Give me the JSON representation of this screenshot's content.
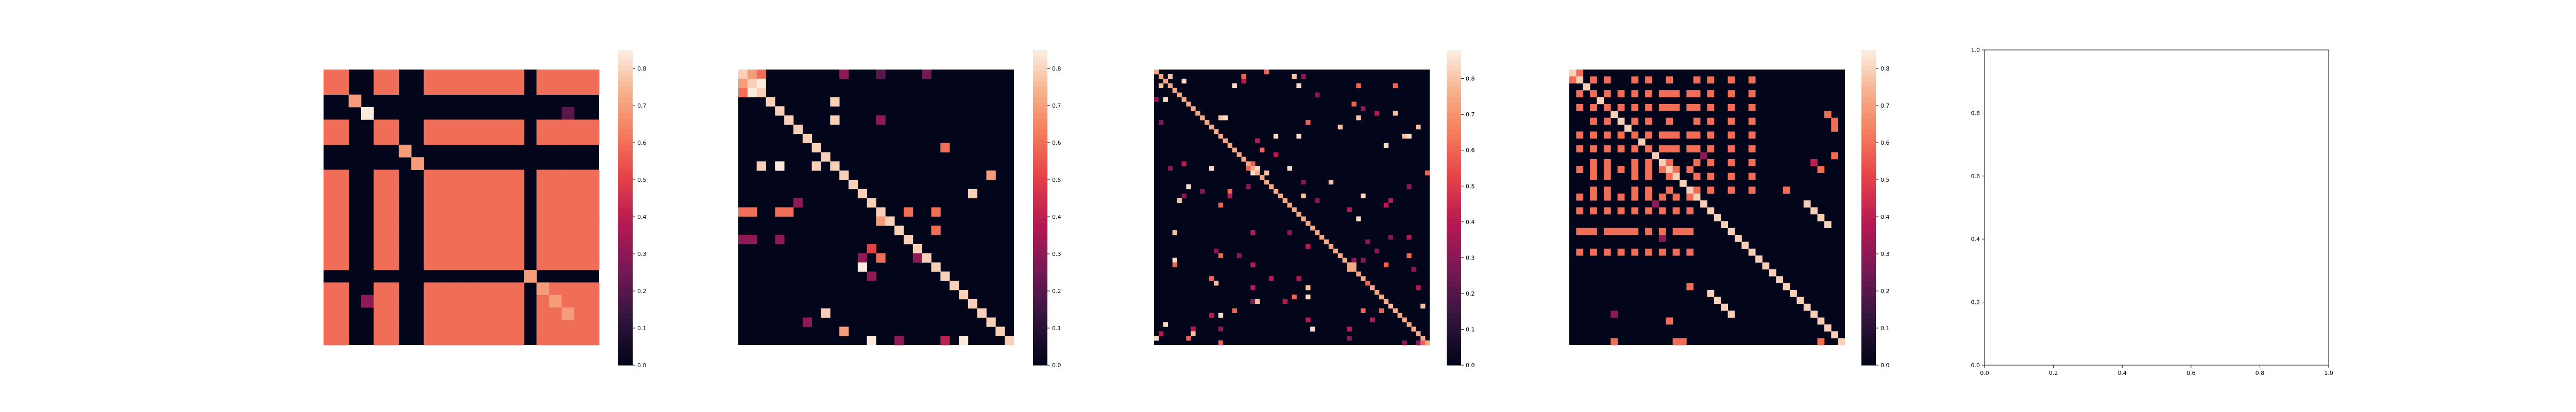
{
  "colors": {
    "background": "#ffffff",
    "heatmap_background": "#03051a",
    "accent": "#e8424a",
    "diag": "#f6b48f",
    "bright": "#fbe9d9",
    "mid_magenta": "#a11a5b",
    "dark_purple": "#4a1a4e"
  },
  "colormap": "rocket",
  "chart_data": [
    {
      "type": "heatmap",
      "title": "",
      "grid_size": 22,
      "colorbar": {
        "min": 0.0,
        "max": 0.85,
        "ticks": [
          "0.0",
          "0.1",
          "0.2",
          "0.3",
          "0.4",
          "0.5",
          "0.6",
          "0.7",
          "0.8"
        ]
      },
      "blocks": {
        "groups": [
          0,
          1,
          4,
          5,
          8,
          9,
          10,
          11,
          12,
          13,
          14,
          15,
          17,
          18,
          19,
          20,
          21
        ],
        "value": 0.6
      },
      "cells": [
        {
          "r": 2,
          "c": 2,
          "v": 0.7
        },
        {
          "r": 3,
          "c": 3,
          "v": 0.85
        },
        {
          "r": 6,
          "c": 6,
          "v": 0.7
        },
        {
          "r": 7,
          "c": 7,
          "v": 0.7
        },
        {
          "r": 16,
          "c": 16,
          "v": 0.7
        },
        {
          "r": 17,
          "c": 17,
          "v": 0.7
        },
        {
          "r": 18,
          "c": 18,
          "v": 0.7
        },
        {
          "r": 19,
          "c": 19,
          "v": 0.7
        },
        {
          "r": 18,
          "c": 3,
          "v": 0.3
        },
        {
          "r": 3,
          "c": 19,
          "v": 0.2
        }
      ]
    },
    {
      "type": "heatmap",
      "title": "",
      "grid_size": 30,
      "colorbar": {
        "min": 0.0,
        "max": 0.85,
        "ticks": [
          "0.0",
          "0.1",
          "0.2",
          "0.3",
          "0.4",
          "0.5",
          "0.6",
          "0.7",
          "0.8"
        ]
      },
      "diagonal_value": 0.8,
      "cells": [
        {
          "r": 0,
          "c": 1,
          "v": 0.7
        },
        {
          "r": 1,
          "c": 0,
          "v": 0.7
        },
        {
          "r": 1,
          "c": 2,
          "v": 0.85
        },
        {
          "r": 2,
          "c": 1,
          "v": 0.85
        },
        {
          "r": 0,
          "c": 2,
          "v": 0.6
        },
        {
          "r": 2,
          "c": 0,
          "v": 0.6
        },
        {
          "r": 0,
          "c": 15,
          "v": 0.2
        },
        {
          "r": 0,
          "c": 20,
          "v": 0.25
        },
        {
          "r": 0,
          "c": 11,
          "v": 0.3
        },
        {
          "r": 3,
          "c": 10,
          "v": 0.8
        },
        {
          "r": 5,
          "c": 10,
          "v": 0.8
        },
        {
          "r": 5,
          "c": 15,
          "v": 0.3
        },
        {
          "r": 8,
          "c": 22,
          "v": 0.6
        },
        {
          "r": 10,
          "c": 2,
          "v": 0.8
        },
        {
          "r": 10,
          "c": 4,
          "v": 0.85
        },
        {
          "r": 10,
          "c": 8,
          "v": 0.8
        },
        {
          "r": 11,
          "c": 27,
          "v": 0.7
        },
        {
          "r": 13,
          "c": 25,
          "v": 0.8
        },
        {
          "r": 14,
          "c": 6,
          "v": 0.3
        },
        {
          "r": 15,
          "c": 0,
          "v": 0.6
        },
        {
          "r": 15,
          "c": 1,
          "v": 0.6
        },
        {
          "r": 15,
          "c": 4,
          "v": 0.6
        },
        {
          "r": 15,
          "c": 5,
          "v": 0.6
        },
        {
          "r": 15,
          "c": 18,
          "v": 0.6
        },
        {
          "r": 15,
          "c": 21,
          "v": 0.6
        },
        {
          "r": 16,
          "c": 15,
          "v": 0.7
        },
        {
          "r": 17,
          "c": 21,
          "v": 0.6
        },
        {
          "r": 18,
          "c": 0,
          "v": 0.3
        },
        {
          "r": 18,
          "c": 1,
          "v": 0.3
        },
        {
          "r": 18,
          "c": 4,
          "v": 0.3
        },
        {
          "r": 19,
          "c": 14,
          "v": 0.5
        },
        {
          "r": 20,
          "c": 13,
          "v": 0.3
        },
        {
          "r": 20,
          "c": 15,
          "v": 0.6
        },
        {
          "r": 20,
          "c": 19,
          "v": 0.3
        },
        {
          "r": 21,
          "c": 13,
          "v": 0.85
        },
        {
          "r": 22,
          "c": 14,
          "v": 0.3
        },
        {
          "r": 26,
          "c": 9,
          "v": 0.8
        },
        {
          "r": 27,
          "c": 7,
          "v": 0.3
        },
        {
          "r": 28,
          "c": 11,
          "v": 0.7
        },
        {
          "r": 29,
          "c": 14,
          "v": 0.85
        },
        {
          "r": 29,
          "c": 17,
          "v": 0.3
        },
        {
          "r": 29,
          "c": 22,
          "v": 0.4
        },
        {
          "r": 29,
          "c": 24,
          "v": 0.85
        }
      ]
    },
    {
      "type": "heatmap",
      "title": "",
      "grid_size": 60,
      "colorbar": {
        "min": 0.0,
        "max": 0.88,
        "ticks": [
          "0.0",
          "0.1",
          "0.2",
          "0.3",
          "0.4",
          "0.5",
          "0.6",
          "0.7",
          "0.8"
        ]
      },
      "diagonal_value": 0.75,
      "cells": [
        {
          "r": 1,
          "c": 3,
          "v": 0.8
        },
        {
          "r": 3,
          "c": 1,
          "v": 0.8
        },
        {
          "r": 2,
          "c": 6,
          "v": 0.85
        },
        {
          "r": 6,
          "c": 2,
          "v": 0.85
        },
        {
          "r": 20,
          "c": 21,
          "v": 0.6
        },
        {
          "r": 21,
          "c": 20,
          "v": 0.6
        },
        {
          "r": 21,
          "c": 22,
          "v": 0.85
        },
        {
          "r": 22,
          "c": 21,
          "v": 0.85
        },
        {
          "r": 42,
          "c": 43,
          "v": 0.75
        },
        {
          "r": 43,
          "c": 42,
          "v": 0.75
        }
      ],
      "random_points": {
        "count": 110,
        "seed": 7
      }
    },
    {
      "type": "heatmap",
      "title": "",
      "grid_size": 40,
      "colorbar": {
        "min": 0.0,
        "max": 0.85,
        "ticks": [
          "0.0",
          "0.1",
          "0.2",
          "0.3",
          "0.4",
          "0.5",
          "0.6",
          "0.7",
          "0.8"
        ]
      },
      "diagonal_value": 0.8,
      "grid_pattern": {
        "rows": [
          1,
          3,
          5,
          7,
          9,
          11,
          13,
          15,
          17
        ],
        "cols": [
          3,
          5,
          9,
          11,
          14,
          18,
          20,
          23,
          26
        ],
        "value": 0.6
      },
      "cells": [
        {
          "r": 0,
          "c": 1,
          "v": 0.6
        },
        {
          "r": 1,
          "c": 0,
          "v": 0.6
        },
        {
          "r": 14,
          "c": 36,
          "v": 0.6
        },
        {
          "r": 36,
          "c": 14,
          "v": 0.6
        },
        {
          "r": 17,
          "c": 31,
          "v": 0.6
        },
        {
          "r": 31,
          "c": 17,
          "v": 0.6
        },
        {
          "r": 19,
          "c": 12,
          "v": 0.3
        },
        {
          "r": 12,
          "c": 19,
          "v": 0.3
        },
        {
          "r": 24,
          "c": 13,
          "v": 0.3
        },
        {
          "r": 23,
          "c": 2,
          "v": 0.6
        },
        {
          "r": 23,
          "c": 6,
          "v": 0.6
        },
        {
          "r": 23,
          "c": 8,
          "v": 0.6
        },
        {
          "r": 23,
          "c": 16,
          "v": 0.6
        },
        {
          "r": 23,
          "c": 17,
          "v": 0.6
        },
        {
          "r": 19,
          "c": 34,
          "v": 0.8
        },
        {
          "r": 20,
          "c": 35,
          "v": 0.8
        },
        {
          "r": 21,
          "c": 36,
          "v": 0.8
        },
        {
          "r": 22,
          "c": 37,
          "v": 0.8
        },
        {
          "r": 32,
          "c": 20,
          "v": 0.8
        },
        {
          "r": 33,
          "c": 21,
          "v": 0.8
        },
        {
          "r": 34,
          "c": 22,
          "v": 0.8
        },
        {
          "r": 35,
          "c": 23,
          "v": 0.8
        },
        {
          "r": 35,
          "c": 6,
          "v": 0.3
        },
        {
          "r": 39,
          "c": 6,
          "v": 0.6
        },
        {
          "r": 39,
          "c": 15,
          "v": 0.6
        },
        {
          "r": 39,
          "c": 16,
          "v": 0.6
        },
        {
          "r": 39,
          "c": 36,
          "v": 0.6
        },
        {
          "r": 12,
          "c": 38,
          "v": 0.6
        },
        {
          "r": 6,
          "c": 37,
          "v": 0.6
        },
        {
          "r": 7,
          "c": 38,
          "v": 0.6
        },
        {
          "r": 8,
          "c": 38,
          "v": 0.6
        },
        {
          "r": 13,
          "c": 35,
          "v": 0.4
        }
      ]
    },
    {
      "type": "scatter",
      "title": "",
      "xlim": [
        0.0,
        1.0
      ],
      "ylim": [
        0.0,
        1.0
      ],
      "x_ticks": [
        "0.0",
        "0.2",
        "0.4",
        "0.6",
        "0.8",
        "1.0"
      ],
      "y_ticks": [
        "0.0",
        "0.2",
        "0.4",
        "0.6",
        "0.8",
        "1.0"
      ],
      "values": []
    }
  ]
}
